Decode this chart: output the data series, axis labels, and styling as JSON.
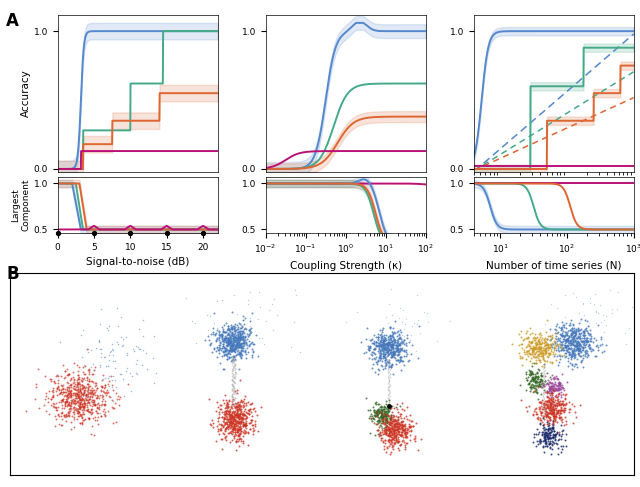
{
  "fig_label_A": "A",
  "fig_label_B": "B",
  "colors": {
    "blue": "#5588cc",
    "green": "#44aa88",
    "orange": "#dd6633",
    "magenta": "#bb1177",
    "gray": "#aaaaaa"
  },
  "title1": "Signal-to-noise (dB)",
  "title2": "Coupling Strength (κ)",
  "title3": "Number of time series (N)",
  "c_blue_scatter": "#4477bb",
  "c_red_scatter": "#cc3322",
  "c_gold_scatter": "#cc9922",
  "c_green_scatter": "#336622",
  "c_purple_scatter": "#994499",
  "c_navy_scatter": "#112266",
  "c_gray_scatter": "#aaaaaa"
}
